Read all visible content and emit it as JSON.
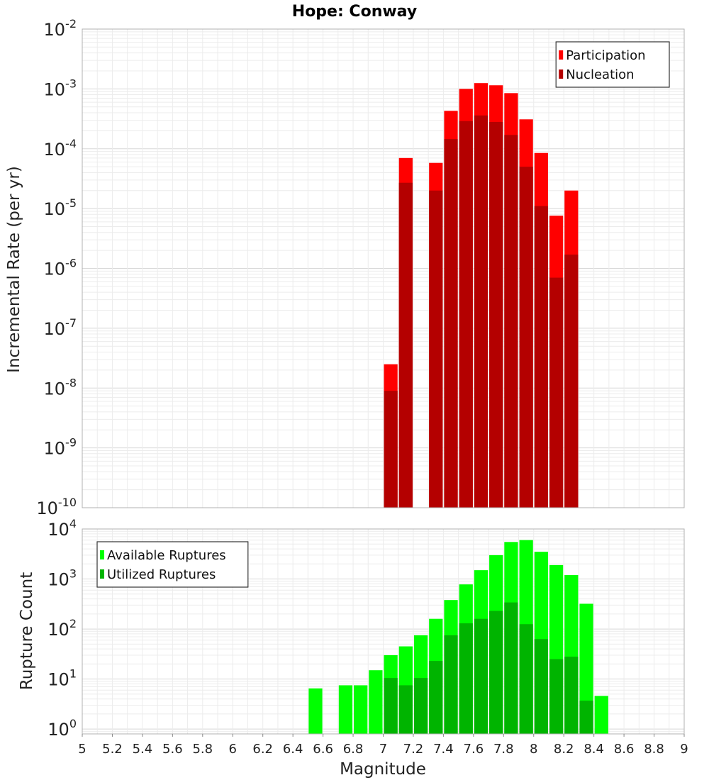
{
  "chart_data": [
    {
      "type": "bar",
      "title": "Hope: Conway",
      "xlabel": "",
      "ylabel": "Incremental Rate (per yr)",
      "yscale": "log",
      "xlim": [
        5,
        9
      ],
      "ylim": [
        1e-10,
        0.01
      ],
      "ytick_labels": [
        "10-10",
        "10-9",
        "10-8",
        "10-7",
        "10-6",
        "10-5",
        "10-4",
        "10-3",
        "10-2"
      ],
      "bin_width": 0.1,
      "grid": true,
      "legend_position": "top-right",
      "x": [
        7.05,
        7.15,
        7.35,
        7.45,
        7.55,
        7.65,
        7.75,
        7.85,
        7.95,
        8.05,
        8.15,
        8.25
      ],
      "series": [
        {
          "name": "Participation",
          "color": "#ff0000",
          "values": [
            2.5e-08,
            7e-05,
            5.8e-05,
            0.00043,
            0.001,
            0.00125,
            0.00115,
            0.00085,
            0.00031,
            8.5e-05,
            7.6e-06,
            2e-05
          ]
        },
        {
          "name": "Nucleation",
          "color": "#b40000",
          "values": [
            9e-09,
            2.7e-05,
            2e-05,
            0.000145,
            0.00029,
            0.00036,
            0.00028,
            0.00017,
            5e-05,
            1.1e-05,
            7e-07,
            1.7e-06
          ]
        }
      ]
    },
    {
      "type": "bar",
      "title": "",
      "xlabel": "Magnitude",
      "ylabel": "Rupture Count",
      "yscale": "log",
      "xlim": [
        5,
        9
      ],
      "ylim": [
        0.8,
        10000.0
      ],
      "ytick_labels": [
        "100",
        "101",
        "102",
        "103",
        "104"
      ],
      "xtick_labels": [
        "5",
        "5.2",
        "5.4",
        "5.6",
        "5.8",
        "6",
        "6.2",
        "6.4",
        "6.6",
        "6.8",
        "7",
        "7.2",
        "7.4",
        "7.6",
        "7.8",
        "8",
        "8.2",
        "8.4",
        "8.6",
        "8.8",
        "9"
      ],
      "bin_width": 0.1,
      "grid": true,
      "legend_position": "top-left",
      "x": [
        6.55,
        6.75,
        6.85,
        6.95,
        7.05,
        7.15,
        7.25,
        7.35,
        7.45,
        7.55,
        7.65,
        7.75,
        7.85,
        7.95,
        8.05,
        8.15,
        8.25,
        8.35,
        8.45
      ],
      "series": [
        {
          "name": "Available Ruptures",
          "color": "#00ff00",
          "values": [
            6.5,
            7.5,
            7.5,
            15,
            30,
            45,
            75,
            160,
            380,
            780,
            1500,
            3000,
            5500,
            6000,
            3500,
            1900,
            1200,
            320,
            4.6
          ]
        },
        {
          "name": "Utilized Ruptures",
          "color": "#00b400",
          "values": [
            0,
            0,
            0,
            0,
            10.5,
            7.5,
            10.5,
            23,
            75,
            130,
            160,
            230,
            340,
            125,
            63,
            25,
            28,
            3.7,
            0
          ]
        }
      ]
    }
  ]
}
